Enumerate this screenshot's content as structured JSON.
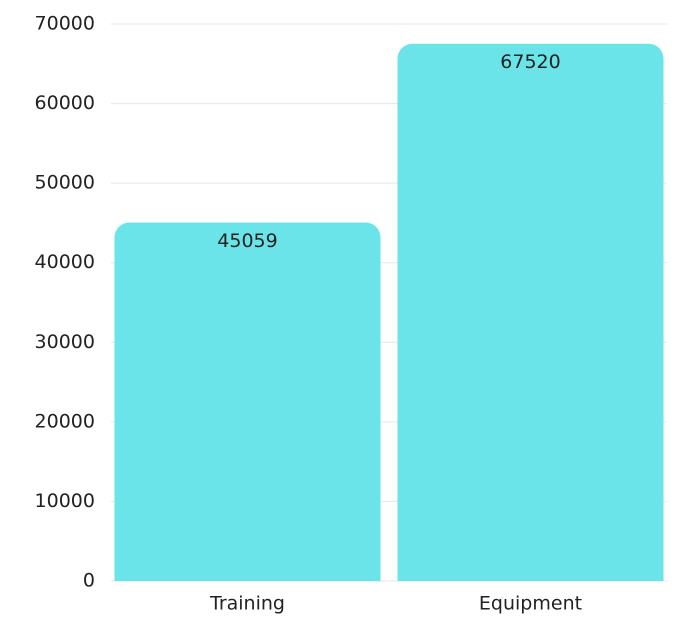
{
  "chart_data": {
    "type": "bar",
    "categories": [
      "Training",
      "Equipment"
    ],
    "values": [
      45059,
      67520
    ],
    "color": "#6ae4e8",
    "ylim": [
      0,
      70000
    ],
    "yticks": [
      0,
      10000,
      20000,
      30000,
      40000,
      50000,
      60000,
      70000
    ],
    "grid": true
  }
}
